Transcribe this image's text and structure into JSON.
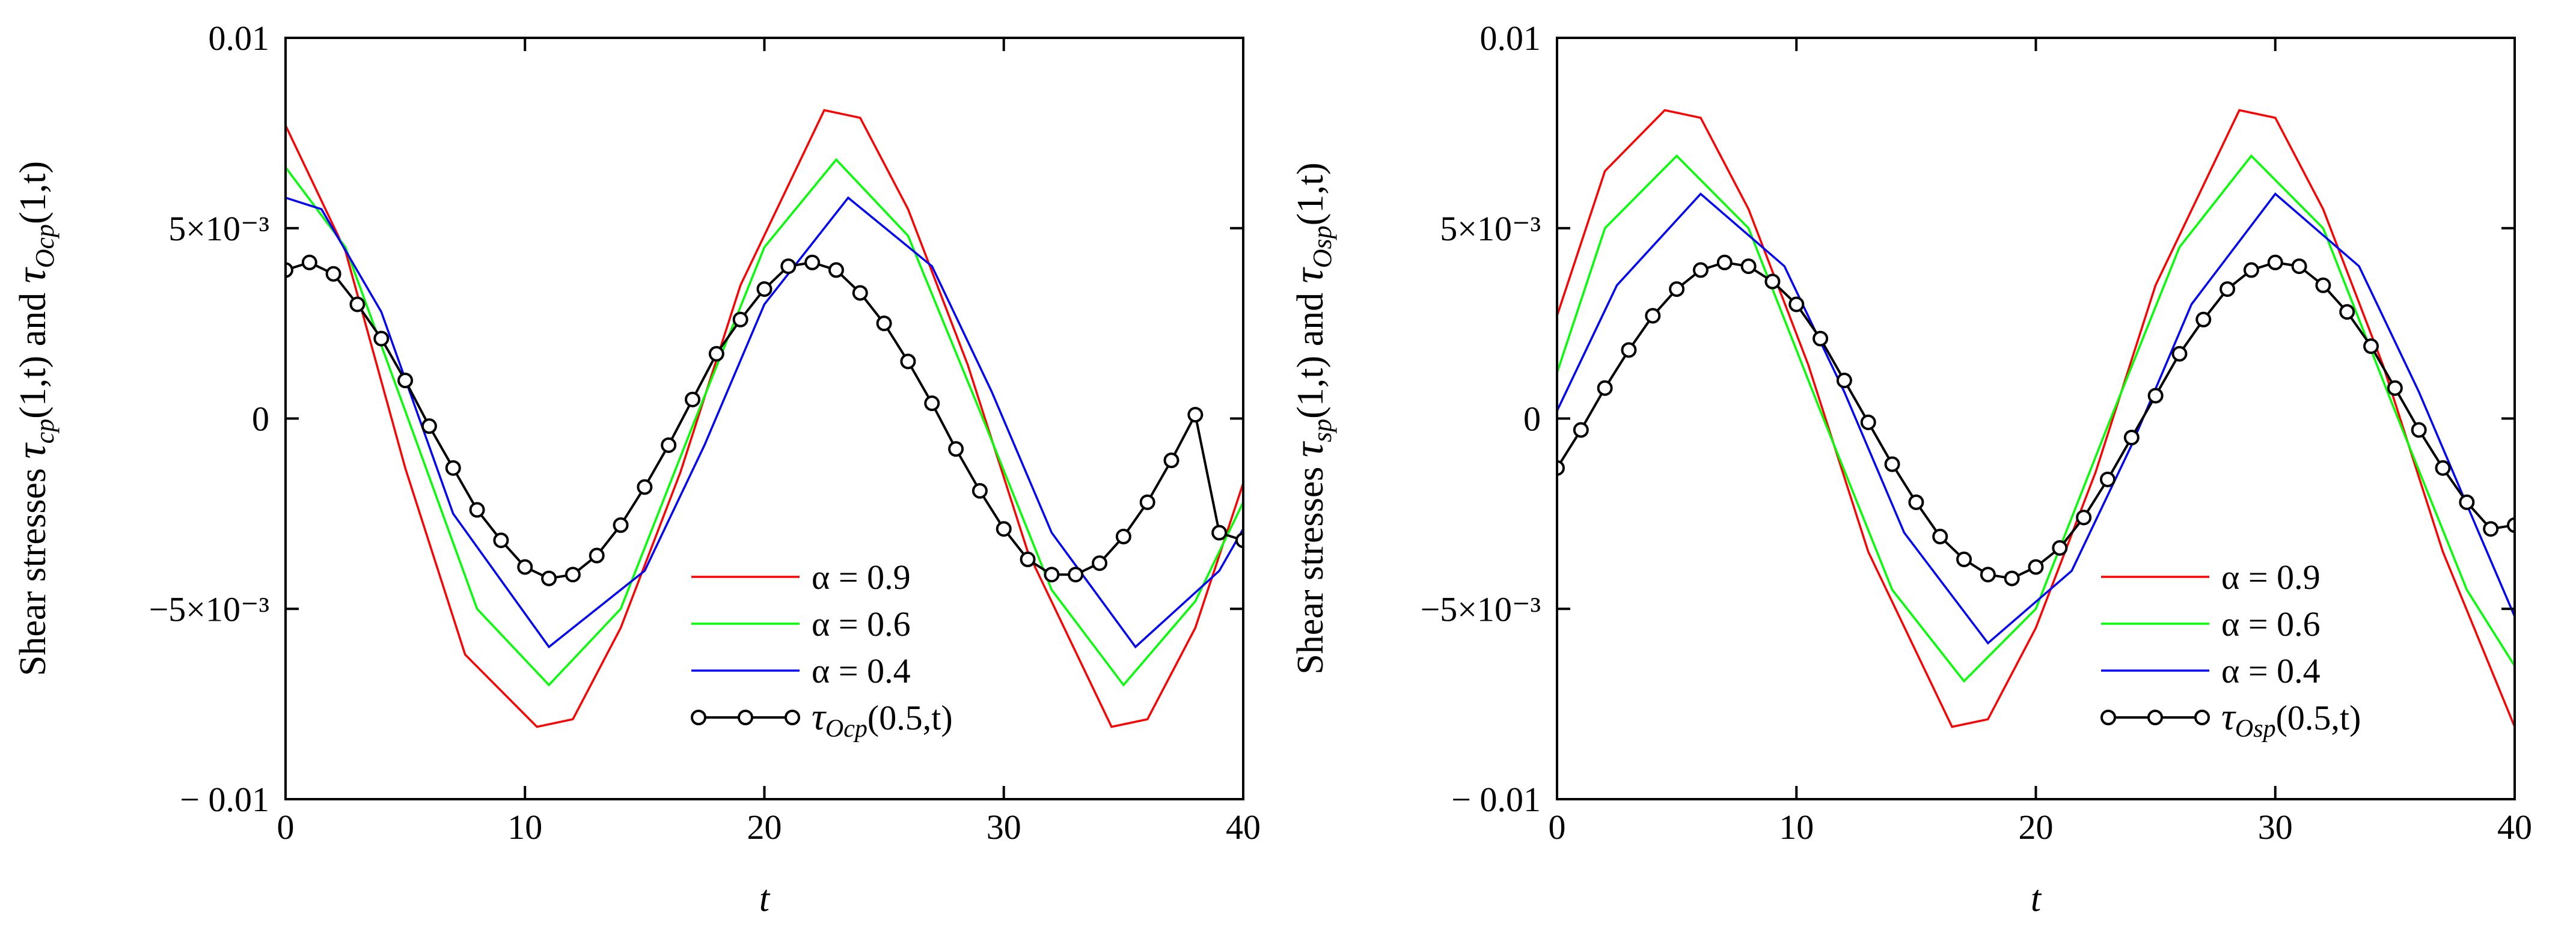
{
  "chart_data": [
    {
      "type": "line",
      "panel": "left",
      "title": "",
      "xlabel": "t",
      "ylabel": {
        "prefix": "Shear stresses ",
        "sym1": "τ",
        "sub1": "cp",
        "arg1": "(1,t)",
        "mid": " and ",
        "sym2": "τ",
        "sub2": "Ocp",
        "arg2": "(1,t)"
      },
      "xlim": [
        0,
        40
      ],
      "ylim": [
        -0.01,
        0.01
      ],
      "xticks": [
        "0",
        "10",
        "20",
        "30",
        "40"
      ],
      "yticks": [
        "0.01",
        "5×10⁻³",
        "0",
        "−5×10⁻³",
        "− 0.01"
      ],
      "series": [
        {
          "name": "α = 0.9",
          "color": "#ff0000",
          "x": [
            0,
            2.5,
            5,
            7.5,
            10.5,
            12,
            14,
            16.5,
            19,
            22.5,
            24,
            26,
            28.5,
            31,
            34.5,
            36,
            38,
            40
          ],
          "y": [
            0.0077,
            0.0044,
            -0.0013,
            -0.0062,
            -0.0081,
            -0.0079,
            -0.0055,
            -0.0014,
            0.0035,
            0.0081,
            0.0079,
            0.0055,
            0.0014,
            -0.0035,
            -0.0081,
            -0.0079,
            -0.0055,
            -0.0017
          ]
        },
        {
          "name": "α = 0.6",
          "color": "#00ff00",
          "x": [
            0,
            2.5,
            5,
            8,
            11,
            14,
            17,
            20,
            23,
            26,
            29,
            32,
            35,
            38,
            40
          ],
          "y": [
            0.0066,
            0.0045,
            0.0002,
            -0.005,
            -0.007,
            -0.005,
            -0.0002,
            0.0045,
            0.0068,
            0.0048,
            0.0002,
            -0.0045,
            -0.007,
            -0.0048,
            -0.0022
          ]
        },
        {
          "name": "α = 0.4",
          "color": "#0000ff",
          "x": [
            0,
            1.5,
            4,
            7,
            11,
            15,
            17.5,
            20,
            23.5,
            27,
            29.5,
            32,
            35.5,
            39,
            40
          ],
          "y": [
            0.0058,
            0.0055,
            0.0028,
            -0.0025,
            -0.006,
            -0.004,
            -0.0007,
            0.003,
            0.0058,
            0.004,
            0.0007,
            -0.003,
            -0.006,
            -0.004,
            -0.0029
          ]
        },
        {
          "name": "τOcp(0.5,t)",
          "label_sym": "τ",
          "label_sub": "Ocp",
          "label_arg": "(0.5,t)",
          "color": "#000000",
          "markers": true,
          "x": [
            0,
            1,
            2,
            3,
            4,
            5,
            6,
            7,
            8,
            9,
            10,
            11,
            12,
            13,
            14,
            15,
            16,
            17,
            18,
            19,
            20,
            21,
            22,
            23,
            24,
            25,
            26,
            27,
            28,
            29,
            30,
            31,
            32,
            33,
            34,
            35,
            36,
            37,
            38,
            39,
            40
          ],
          "y": [
            0.0039,
            0.0041,
            0.0038,
            0.003,
            0.0021,
            0.001,
            -0.0002,
            -0.0013,
            -0.0024,
            -0.0032,
            -0.0039,
            -0.0042,
            -0.0041,
            -0.0036,
            -0.0028,
            -0.0018,
            -0.0007,
            0.0005,
            0.0017,
            0.0026,
            0.0034,
            0.004,
            0.0041,
            0.0039,
            0.0033,
            0.0025,
            0.0015,
            0.0004,
            -0.0008,
            -0.0019,
            -0.0029,
            -0.0037,
            -0.0041,
            -0.0041,
            -0.0038,
            -0.0031,
            -0.0022,
            -0.0011,
            0.0001,
            -0.003,
            -0.0032
          ]
        }
      ],
      "legend_position": "bottom-right"
    },
    {
      "type": "line",
      "panel": "right",
      "title": "",
      "xlabel": "t",
      "ylabel": {
        "prefix": "Shear stresses ",
        "sym1": "τ",
        "sub1": "sp",
        "arg1": "(1,t)",
        "mid": " and ",
        "sym2": "τ",
        "sub2": "Osp",
        "arg2": "(1,t)"
      },
      "xlim": [
        0,
        40
      ],
      "ylim": [
        -0.01,
        0.01
      ],
      "xticks": [
        "0",
        "10",
        "20",
        "30",
        "40"
      ],
      "yticks": [
        "0.01",
        "5×10⁻³",
        "0",
        "−5×10⁻³",
        "− 0.01"
      ],
      "series": [
        {
          "name": "α = 0.9",
          "color": "#ff0000",
          "x": [
            0,
            2,
            4.5,
            6,
            8,
            10.5,
            13,
            16.5,
            18,
            20,
            22.5,
            25,
            28.5,
            30,
            32,
            34.5,
            37,
            40
          ],
          "y": [
            0.0027,
            0.0065,
            0.0081,
            0.0079,
            0.0055,
            0.0014,
            -0.0035,
            -0.0081,
            -0.0079,
            -0.0055,
            -0.0014,
            0.0035,
            0.0081,
            0.0079,
            0.0055,
            0.0014,
            -0.0035,
            -0.0081
          ]
        },
        {
          "name": "α = 0.6",
          "color": "#00ff00",
          "x": [
            0,
            2,
            5,
            8,
            11,
            14,
            17,
            20,
            23,
            26,
            29,
            32,
            35,
            38,
            40
          ],
          "y": [
            0.0012,
            0.005,
            0.0069,
            0.005,
            0.0002,
            -0.0045,
            -0.0069,
            -0.005,
            -0.0002,
            0.0045,
            0.0069,
            0.005,
            0.0002,
            -0.0045,
            -0.0065
          ]
        },
        {
          "name": "α = 0.4",
          "color": "#0000ff",
          "x": [
            0,
            2.5,
            6,
            9.5,
            12,
            14.5,
            18,
            21.5,
            24,
            26.5,
            30,
            33.5,
            36,
            38.5,
            40
          ],
          "y": [
            0.0002,
            0.0035,
            0.0059,
            0.004,
            0.0007,
            -0.003,
            -0.0059,
            -0.004,
            -0.0007,
            0.003,
            0.0059,
            0.004,
            0.0007,
            -0.003,
            -0.0052
          ]
        },
        {
          "name": "τOsp(0.5,t)",
          "label_sym": "τ",
          "label_sub": "Osp",
          "label_arg": "(0.5,t)",
          "color": "#000000",
          "markers": true,
          "x": [
            0,
            1,
            2,
            3,
            4,
            5,
            6,
            7,
            8,
            9,
            10,
            11,
            12,
            13,
            14,
            15,
            16,
            17,
            18,
            19,
            20,
            21,
            22,
            23,
            24,
            25,
            26,
            27,
            28,
            29,
            30,
            31,
            32,
            33,
            34,
            35,
            36,
            37,
            38,
            39,
            40
          ],
          "y": [
            -0.0013,
            -0.0003,
            0.0008,
            0.0018,
            0.0027,
            0.0034,
            0.0039,
            0.0041,
            0.004,
            0.0036,
            0.003,
            0.0021,
            0.001,
            -0.0001,
            -0.0012,
            -0.0022,
            -0.0031,
            -0.0037,
            -0.0041,
            -0.0042,
            -0.0039,
            -0.0034,
            -0.0026,
            -0.0016,
            -0.0005,
            0.0006,
            0.0017,
            0.0026,
            0.0034,
            0.0039,
            0.0041,
            0.004,
            0.0035,
            0.0028,
            0.0019,
            0.0008,
            -0.0003,
            -0.0013,
            -0.0022,
            -0.0029,
            -0.0028
          ]
        }
      ],
      "legend_position": "bottom-right"
    }
  ]
}
